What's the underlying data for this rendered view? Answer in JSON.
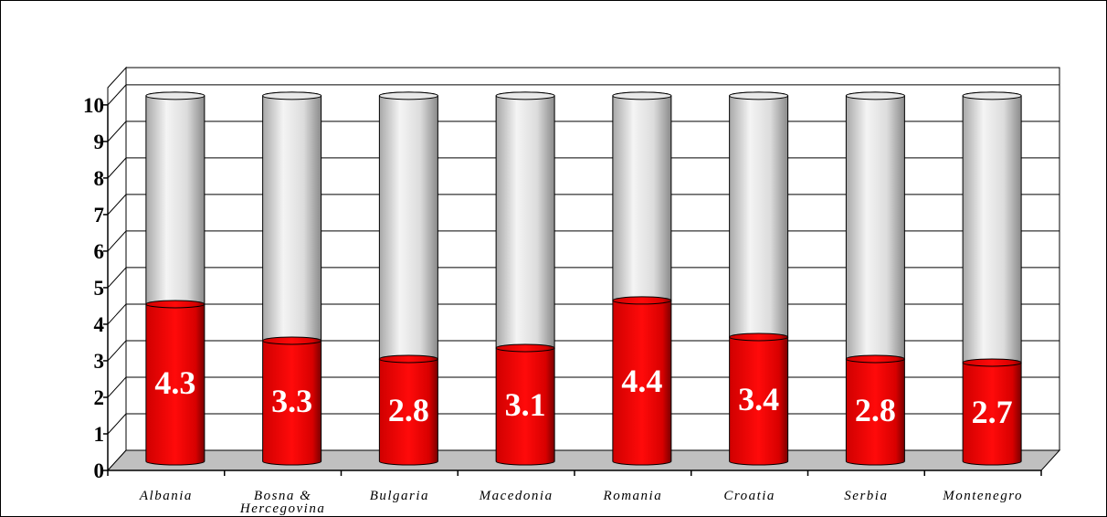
{
  "chart_data": {
    "type": "bar",
    "stacked_to": 10,
    "categories": [
      "Albania",
      "Bosna & Hercegovina",
      "Bulgaria",
      "Macedonia",
      "Romania",
      "Croatia",
      "Serbia",
      "Montenegro"
    ],
    "category_lines": [
      [
        "Albania"
      ],
      [
        "Bosna &",
        "Hercegovina"
      ],
      [
        "Bulgaria"
      ],
      [
        "Macedonia"
      ],
      [
        "Romania"
      ],
      [
        "Croatia"
      ],
      [
        "Serbia"
      ],
      [
        "Montenegro"
      ]
    ],
    "values": [
      4.3,
      3.3,
      2.8,
      3.1,
      4.4,
      3.4,
      2.8,
      2.7
    ],
    "data_labels": [
      "4.3",
      "3.3",
      "2.8",
      "3.1",
      "4.4",
      "3.4",
      "2.8",
      "2.7"
    ],
    "yticks": [
      "0",
      "1",
      "2",
      "3",
      "4",
      "5",
      "6",
      "7",
      "8",
      "9",
      "10"
    ],
    "ylim": [
      0,
      10
    ],
    "grid": true,
    "colors": {
      "value": "#e00000",
      "remainder": "#d8d8d8",
      "floor": "#c0c0c0"
    },
    "title": "",
    "xlabel": "",
    "ylabel": ""
  }
}
